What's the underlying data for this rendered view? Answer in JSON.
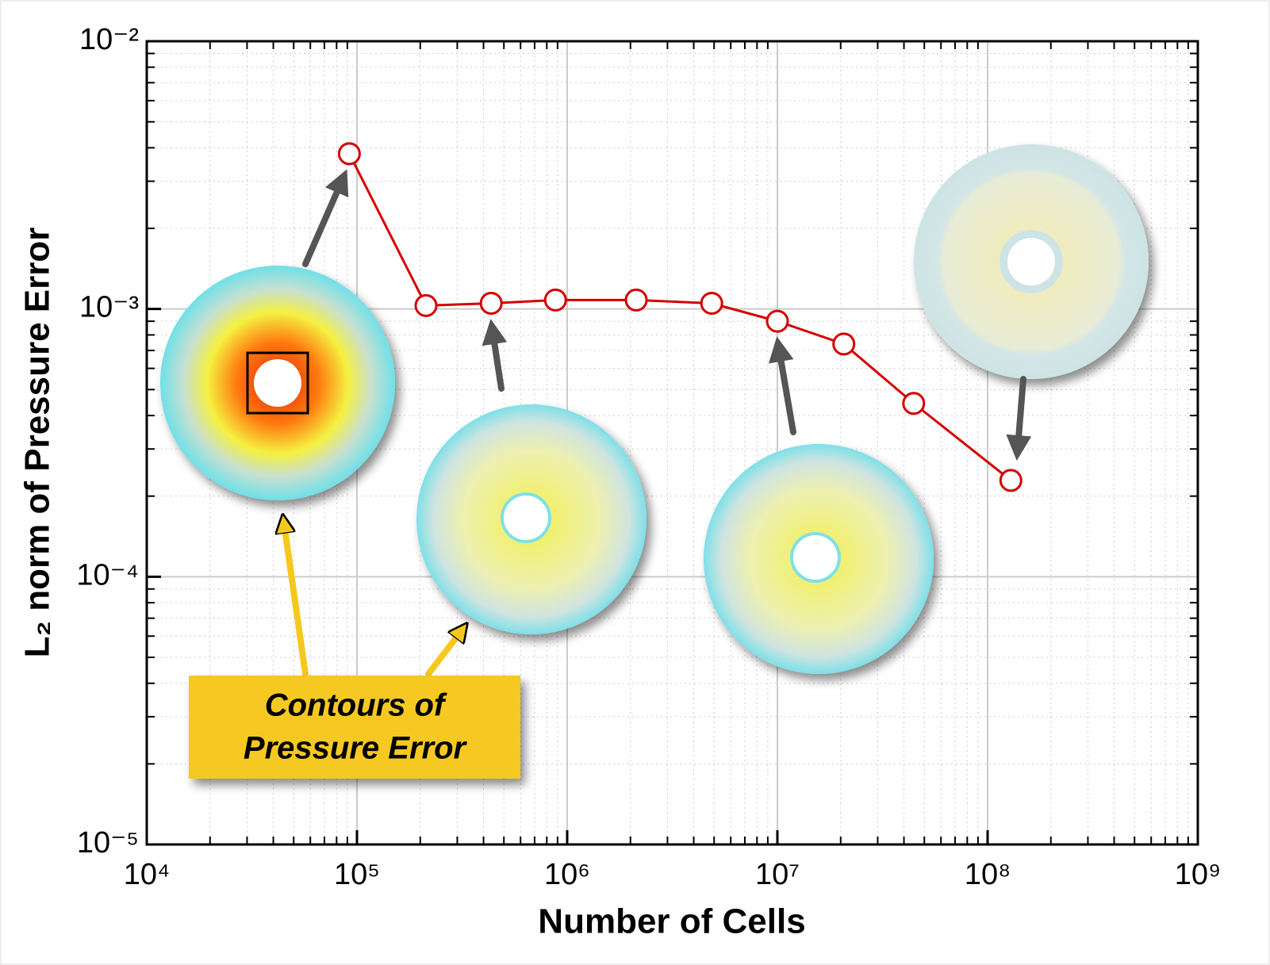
{
  "chart_data": {
    "type": "line",
    "xlabel": "Number of Cells",
    "ylabel": "L₂ norm of Pressure Error",
    "annotation": [
      "Contours of",
      "Pressure Error"
    ],
    "x": [
      92000,
      213000,
      435000,
      880000,
      2130000,
      4870000,
      10000000,
      20700000,
      44500000,
      129000000
    ],
    "series": [
      {
        "color": "#d40000",
        "values": [
          0.0038,
          0.00103,
          0.00105,
          0.00108,
          0.00108,
          0.00105,
          0.0009,
          0.00074,
          0.000444,
          0.000229
        ]
      }
    ],
    "xscale": "log",
    "yscale": "log",
    "xlim": [
      10000,
      1000000000
    ],
    "ylim": [
      1e-05,
      0.01
    ],
    "xticks": [
      {
        "value": 10000,
        "label": "10⁴"
      },
      {
        "value": 100000,
        "label": "10⁵"
      },
      {
        "value": 1000000,
        "label": "10⁶"
      },
      {
        "value": 10000000,
        "label": "10⁷"
      },
      {
        "value": 100000000,
        "label": "10⁸"
      },
      {
        "value": 1000000000,
        "label": "10⁹"
      }
    ],
    "yticks": [
      {
        "value": 1e-05,
        "label": "10⁻⁵"
      },
      {
        "value": 0.0001,
        "label": "10⁻⁴"
      },
      {
        "value": 0.001,
        "label": "10⁻³"
      },
      {
        "value": 0.01,
        "label": "10⁻²"
      }
    ],
    "grid": true,
    "minor_grid": true
  }
}
